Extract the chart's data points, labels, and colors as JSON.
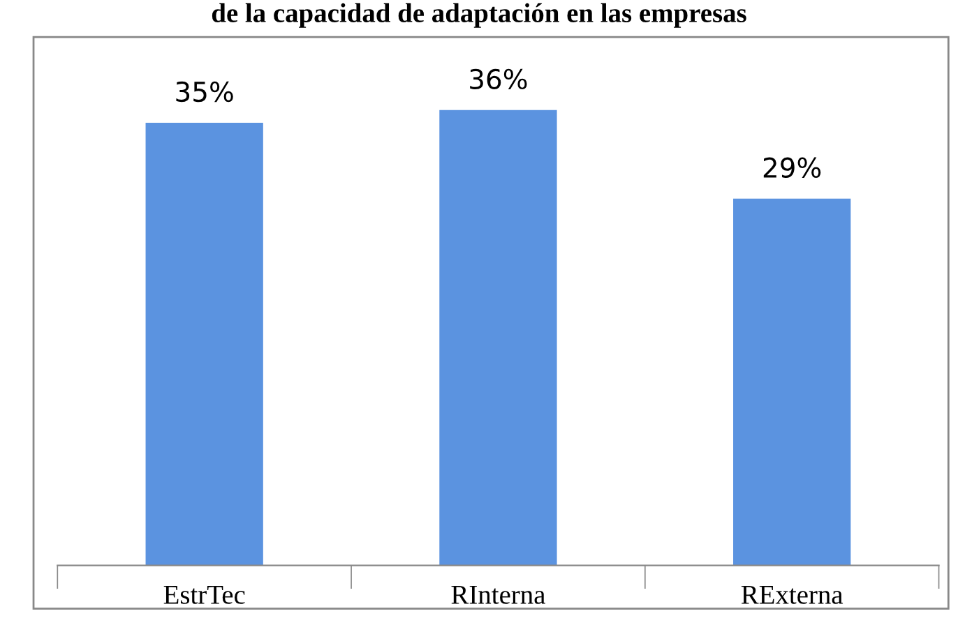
{
  "chart_data": {
    "type": "bar",
    "title": "de la capacidad de adaptación en las empresas",
    "categories": [
      "EstrTec",
      "RInterna",
      "RExterna"
    ],
    "values": [
      35,
      36,
      29
    ],
    "value_labels": [
      "35%",
      "36%",
      "29%"
    ],
    "color": "#5b93e0",
    "grid": false,
    "legend": false
  }
}
